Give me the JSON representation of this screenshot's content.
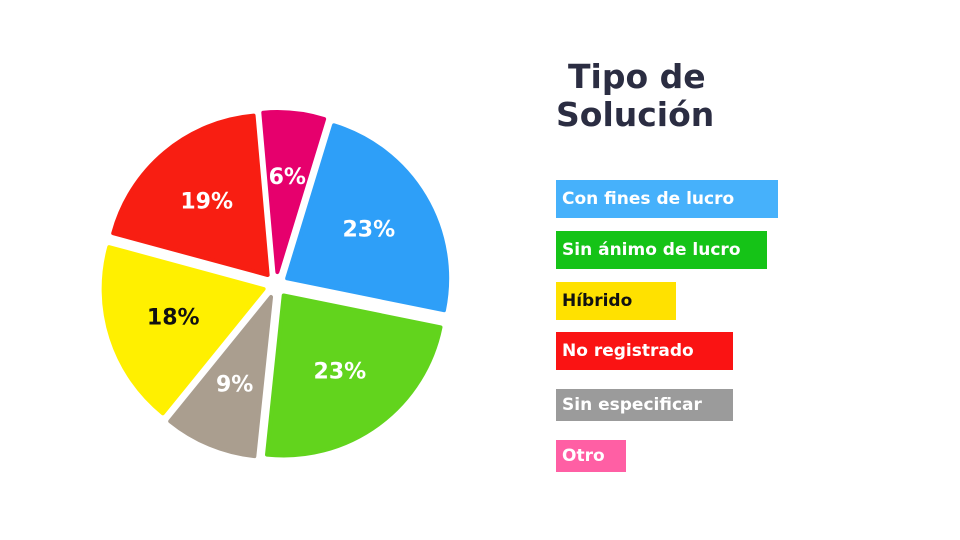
{
  "title_line1": "Tipo de",
  "title_line2": "Solución",
  "chart_data": {
    "type": "pie",
    "title": "Tipo de Solución",
    "slices": [
      {
        "name": "Con fines de lucro",
        "value": 23,
        "label": "23%",
        "color": "#2e9ff8",
        "label_color": "#ffffff"
      },
      {
        "name": "Sin ánimo de lucro",
        "value": 23,
        "label": "23%",
        "color": "#62d41d",
        "label_color": "#ffffff"
      },
      {
        "name": "Sin especificar",
        "value": 9,
        "label": "9%",
        "color": "#aa9e8f",
        "label_color": "#ffffff"
      },
      {
        "name": "Híbrido",
        "value": 18,
        "label": "18%",
        "color": "#fff000",
        "label_color": "#111111"
      },
      {
        "name": "No registrado",
        "value": 19,
        "label": "19%",
        "color": "#f81e12",
        "label_color": "#ffffff"
      },
      {
        "name": "Otro",
        "value": 6,
        "label": "6%",
        "color": "#e6006d",
        "label_color": "#ffffff"
      }
    ],
    "legend_placement": "right"
  },
  "legend": [
    {
      "label": "Con fines de lucro",
      "color": "#46b1fb",
      "text_color": "#ffffff"
    },
    {
      "label": "Sin ánimo de lucro",
      "color": "#15c317",
      "text_color": "#ffffff"
    },
    {
      "label": "Híbrido",
      "color": "#ffe100",
      "text_color": "#111111"
    },
    {
      "label": "No registrado",
      "color": "#fa1313",
      "text_color": "#ffffff"
    },
    {
      "label": "Sin especificar",
      "color": "#9b9b9b",
      "text_color": "#ffffff"
    },
    {
      "label": "Otro",
      "color": "#ff5fa4",
      "text_color": "#ffffff"
    }
  ]
}
